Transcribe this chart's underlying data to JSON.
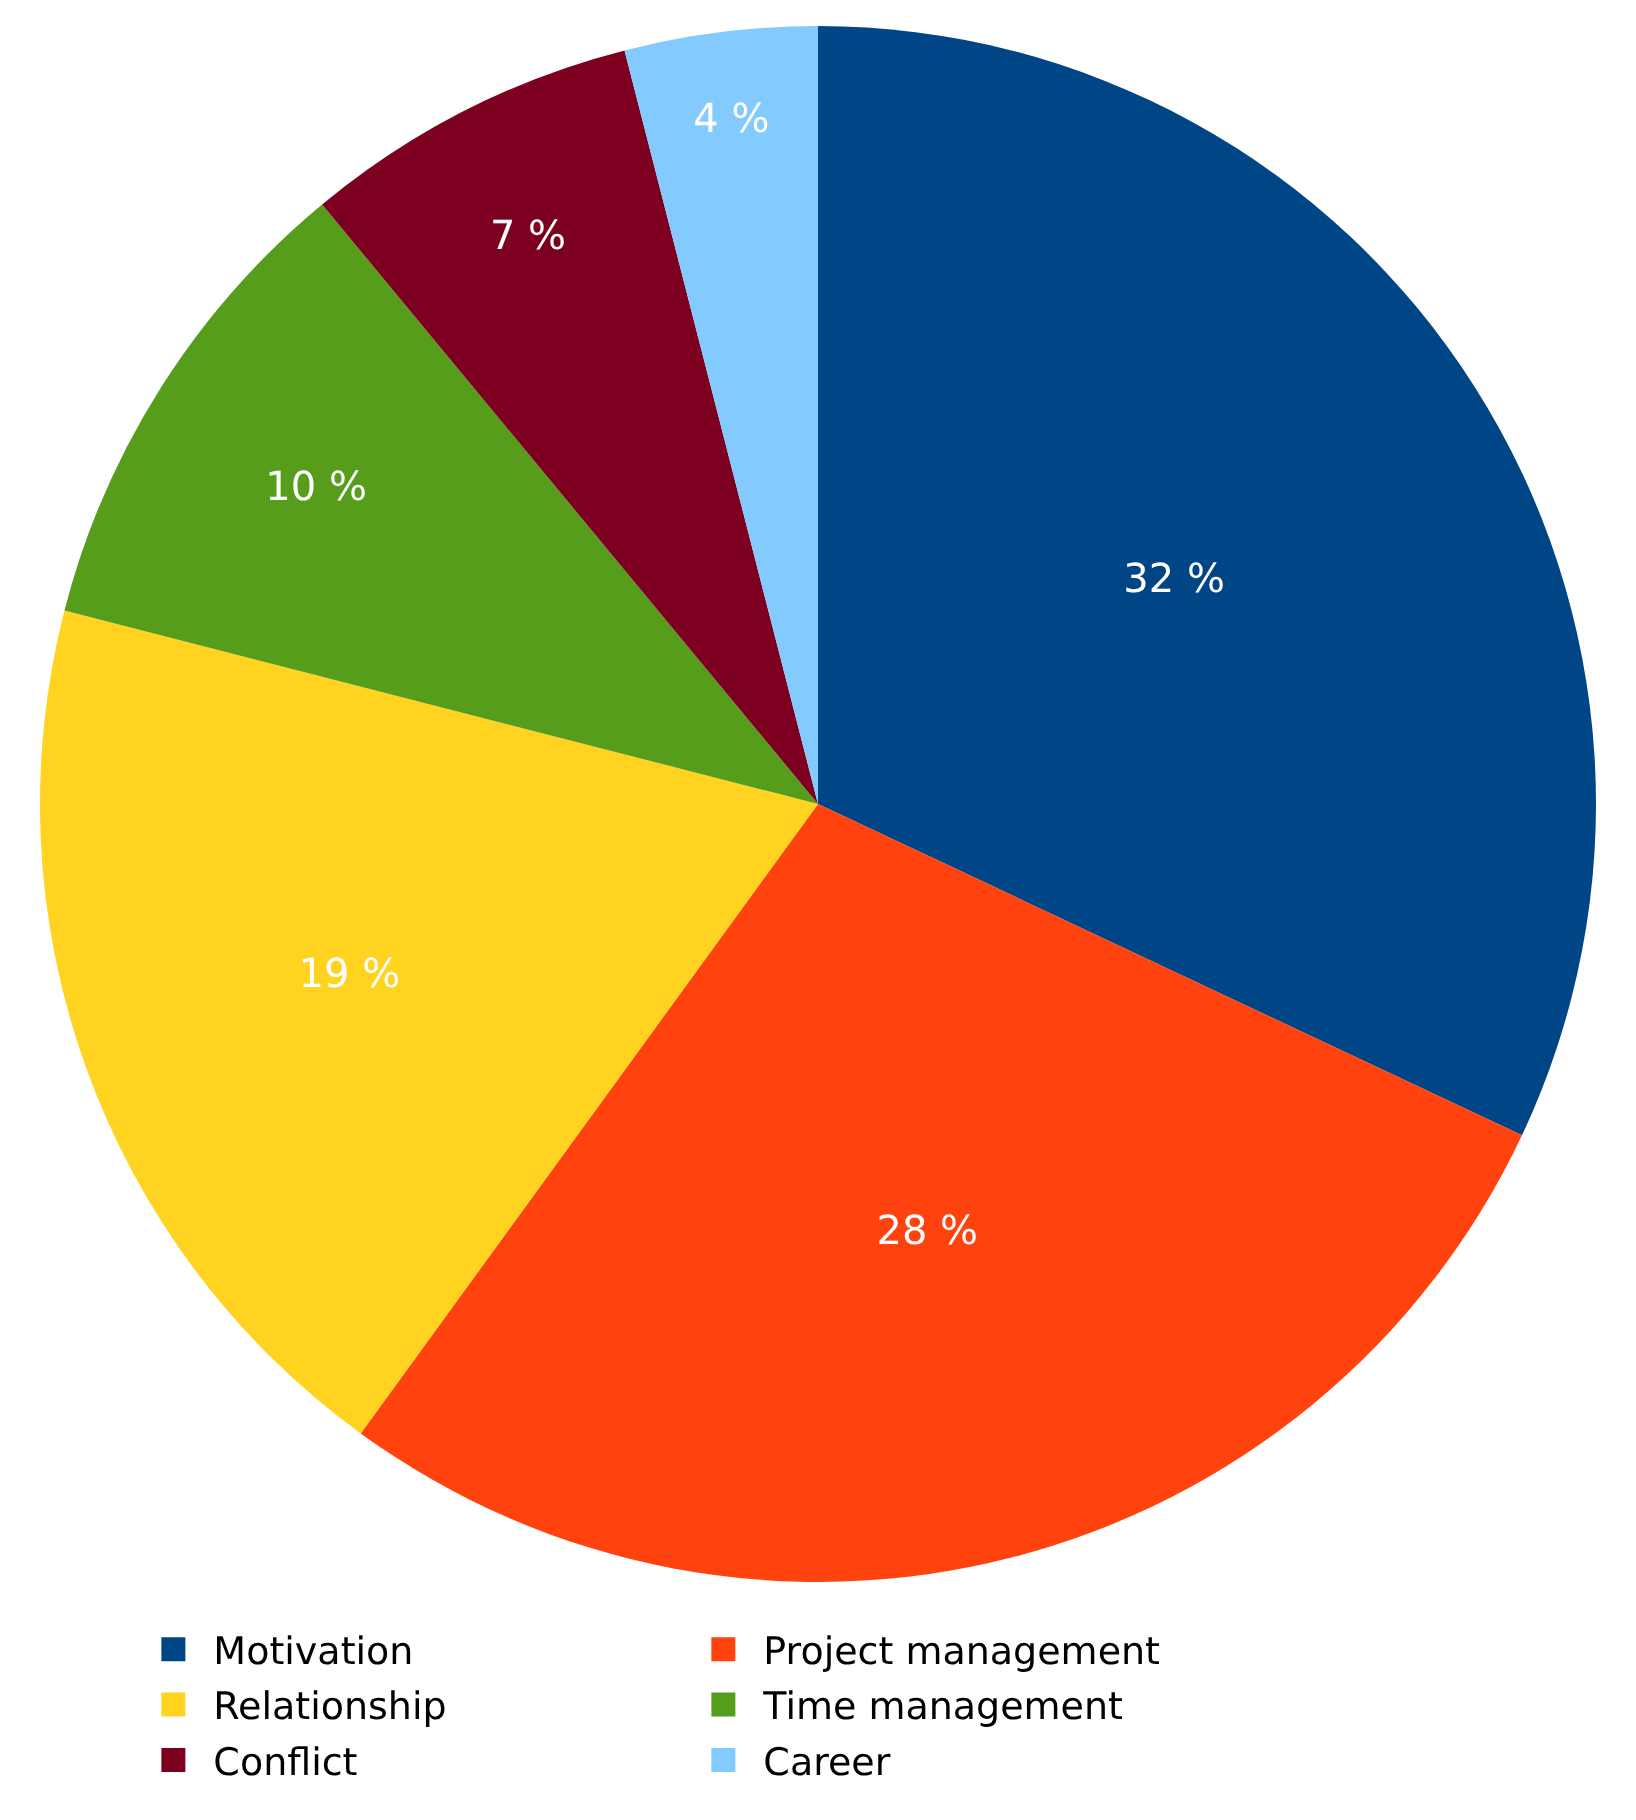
{
  "chart_data": {
    "type": "pie",
    "categories": [
      "Motivation",
      "Project management",
      "Relationship",
      "Time management",
      "Conflict",
      "Career"
    ],
    "values": [
      32,
      28,
      19,
      10,
      7,
      4
    ],
    "colors": [
      "#004586",
      "#ff420e",
      "#ffd320",
      "#579d1c",
      "#7e0021",
      "#83caff"
    ],
    "value_labels": [
      "32 %",
      "28 %",
      "19 %",
      "10 %",
      "7 %",
      "4 %"
    ],
    "legend": "bottom"
  }
}
